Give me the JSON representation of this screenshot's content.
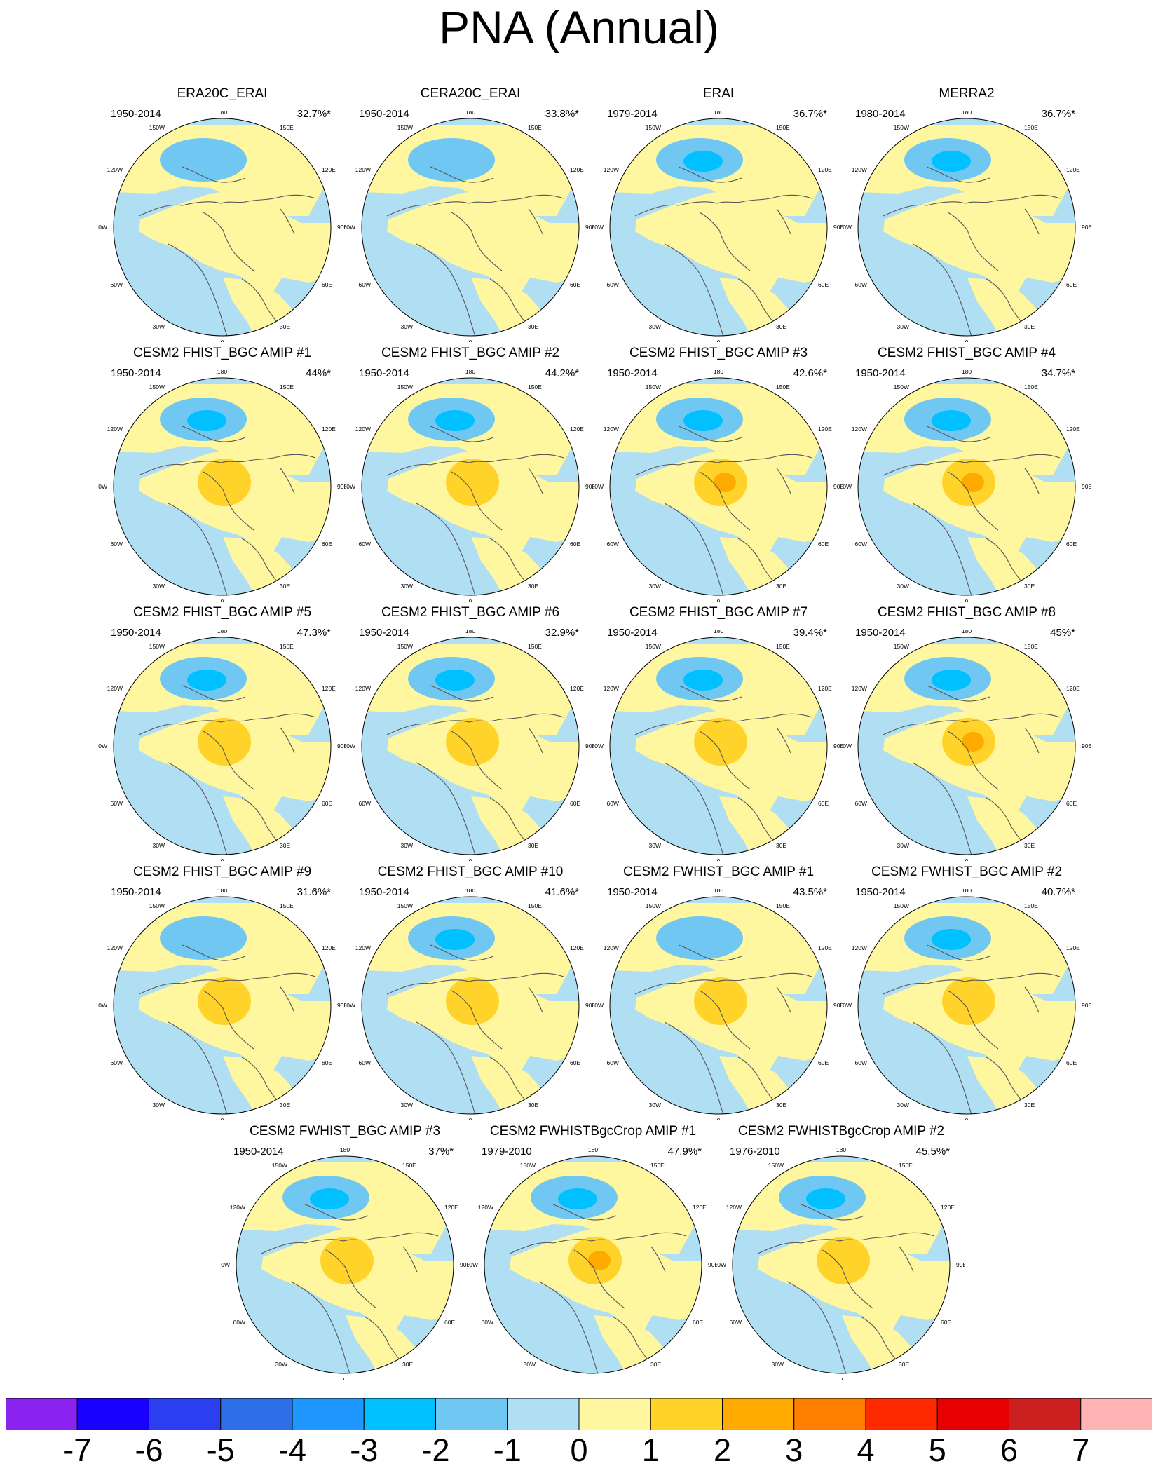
{
  "title": "PNA (Annual)",
  "colors": {
    "neg3": "#00c0ff",
    "neg2": "#70c8f2",
    "neg1": "#b0def2",
    "pos1": "#fff6a0",
    "pos2": "#ffd32a",
    "pos3": "#ffaa00",
    "pos4": "#ff7f00"
  },
  "longitude_labels": [
    "180",
    "150E",
    "120E",
    "90E",
    "60E",
    "30E",
    "0",
    "30W",
    "60W",
    "90W",
    "120W",
    "150W"
  ],
  "panels": [
    {
      "title": "ERA20C_ERAI",
      "period": "1950-2014",
      "stat": "32.7%*",
      "peak_neg": -2,
      "peak_pos": 1
    },
    {
      "title": "CERA20C_ERAI",
      "period": "1950-2014",
      "stat": "33.8%*",
      "peak_neg": -2,
      "peak_pos": 1
    },
    {
      "title": "ERAI",
      "period": "1979-2014",
      "stat": "36.7%*",
      "peak_neg": -3,
      "peak_pos": 1
    },
    {
      "title": "MERRA2",
      "period": "1980-2014",
      "stat": "36.7%*",
      "peak_neg": -3,
      "peak_pos": 1
    },
    {
      "title": "CESM2 FHIST_BGC AMIP #1",
      "period": "1950-2014",
      "stat": "44%*",
      "peak_neg": -3,
      "peak_pos": 2
    },
    {
      "title": "CESM2 FHIST_BGC AMIP #2",
      "period": "1950-2014",
      "stat": "44.2%*",
      "peak_neg": -3,
      "peak_pos": 2
    },
    {
      "title": "CESM2 FHIST_BGC AMIP #3",
      "period": "1950-2014",
      "stat": "42.6%*",
      "peak_neg": -3,
      "peak_pos": 3
    },
    {
      "title": "CESM2 FHIST_BGC AMIP #4",
      "period": "1950-2014",
      "stat": "34.7%*",
      "peak_neg": -3,
      "peak_pos": 3
    },
    {
      "title": "CESM2 FHIST_BGC AMIP #5",
      "period": "1950-2014",
      "stat": "47.3%*",
      "peak_neg": -3,
      "peak_pos": 2
    },
    {
      "title": "CESM2 FHIST_BGC AMIP #6",
      "period": "1950-2014",
      "stat": "32.9%*",
      "peak_neg": -3,
      "peak_pos": 2
    },
    {
      "title": "CESM2 FHIST_BGC AMIP #7",
      "period": "1950-2014",
      "stat": "39.4%*",
      "peak_neg": -3,
      "peak_pos": 2
    },
    {
      "title": "CESM2 FHIST_BGC AMIP #8",
      "period": "1950-2014",
      "stat": "45%*",
      "peak_neg": -3,
      "peak_pos": 3
    },
    {
      "title": "CESM2 FHIST_BGC AMIP #9",
      "period": "1950-2014",
      "stat": "31.6%*",
      "peak_neg": -2,
      "peak_pos": 2
    },
    {
      "title": "CESM2 FHIST_BGC AMIP #10",
      "period": "1950-2014",
      "stat": "41.6%*",
      "peak_neg": -3,
      "peak_pos": 2
    },
    {
      "title": "CESM2 FWHIST_BGC AMIP #1",
      "period": "1950-2014",
      "stat": "43.5%*",
      "peak_neg": -2,
      "peak_pos": 2
    },
    {
      "title": "CESM2 FWHIST_BGC AMIP #2",
      "period": "1950-2014",
      "stat": "40.7%*",
      "peak_neg": -3,
      "peak_pos": 2
    },
    {
      "title": "CESM2 FWHIST_BGC AMIP #3",
      "period": "1950-2014",
      "stat": "37%*",
      "peak_neg": -3,
      "peak_pos": 2
    },
    {
      "title": "CESM2 FWHISTBgcCrop AMIP #1",
      "period": "1979-2010",
      "stat": "47.9%*",
      "peak_neg": -3,
      "peak_pos": 3
    },
    {
      "title": "CESM2 FWHISTBgcCrop AMIP #2",
      "period": "1976-2010",
      "stat": "45.5%*",
      "peak_neg": -3,
      "peak_pos": 2
    }
  ],
  "colorbar": {
    "labels": [
      "-7",
      "-6",
      "-5",
      "-4",
      "-3",
      "-2",
      "-1",
      "0",
      "1",
      "2",
      "3",
      "4",
      "5",
      "6",
      "7"
    ],
    "colors": [
      "#8b23f0",
      "#1a00ff",
      "#2b3ef0",
      "#2e6fe8",
      "#1e98ff",
      "#00c0ff",
      "#70c8f2",
      "#b0def2",
      "#fff6a0",
      "#ffd32a",
      "#ffaa00",
      "#ff7f00",
      "#ff2a00",
      "#e60000",
      "#cc2020",
      "#ffb3b3"
    ]
  }
}
